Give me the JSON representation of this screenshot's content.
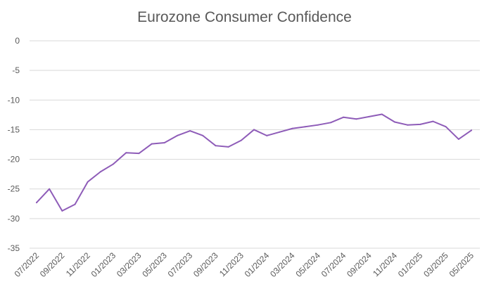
{
  "chart_data": {
    "type": "line",
    "title": "Eurozone Consumer Confidence",
    "xlabel": "",
    "ylabel": "",
    "ylim": [
      -35,
      0
    ],
    "yticks": [
      0,
      -5,
      -10,
      -15,
      -20,
      -25,
      -30,
      -35
    ],
    "ytick_labels": [
      "0",
      "-5",
      "-10",
      "-15",
      "-20",
      "-25",
      "-30",
      "-35"
    ],
    "grid": true,
    "legend": "none",
    "x": [
      "07/2022",
      "08/2022",
      "09/2022",
      "10/2022",
      "11/2022",
      "12/2022",
      "01/2023",
      "02/2023",
      "03/2023",
      "04/2023",
      "05/2023",
      "06/2023",
      "07/2023",
      "08/2023",
      "09/2023",
      "10/2023",
      "11/2023",
      "12/2023",
      "01/2024",
      "02/2024",
      "03/2024",
      "04/2024",
      "05/2024",
      "06/2024",
      "07/2024",
      "08/2024",
      "09/2024",
      "10/2024",
      "11/2024",
      "12/2024",
      "01/2025",
      "02/2025",
      "03/2025",
      "04/2025",
      "05/2025"
    ],
    "xtick_labels": [
      "07/2022",
      "09/2022",
      "11/2022",
      "01/2023",
      "03/2023",
      "05/2023",
      "07/2023",
      "09/2023",
      "11/2023",
      "01/2024",
      "03/2024",
      "05/2024",
      "07/2024",
      "09/2024",
      "11/2024",
      "01/2025",
      "03/2025",
      "05/2025"
    ],
    "series": [
      {
        "name": "",
        "color": "#8e5cb8",
        "values": [
          -27.3,
          -25.0,
          -28.7,
          -27.6,
          -23.8,
          -22.1,
          -20.8,
          -18.9,
          -19.0,
          -17.4,
          -17.2,
          -16.0,
          -15.2,
          -16.0,
          -17.7,
          -17.9,
          -16.8,
          -15.0,
          -16.0,
          -15.4,
          -14.8,
          -14.5,
          -14.2,
          -13.8,
          -12.9,
          -13.2,
          -12.8,
          -12.4,
          -13.7,
          -14.2,
          -14.1,
          -13.6,
          -14.5,
          -16.6,
          -15.1
        ]
      }
    ]
  },
  "style": {
    "axis_text_color": "#595959",
    "grid_color": "#d9d9d9"
  }
}
